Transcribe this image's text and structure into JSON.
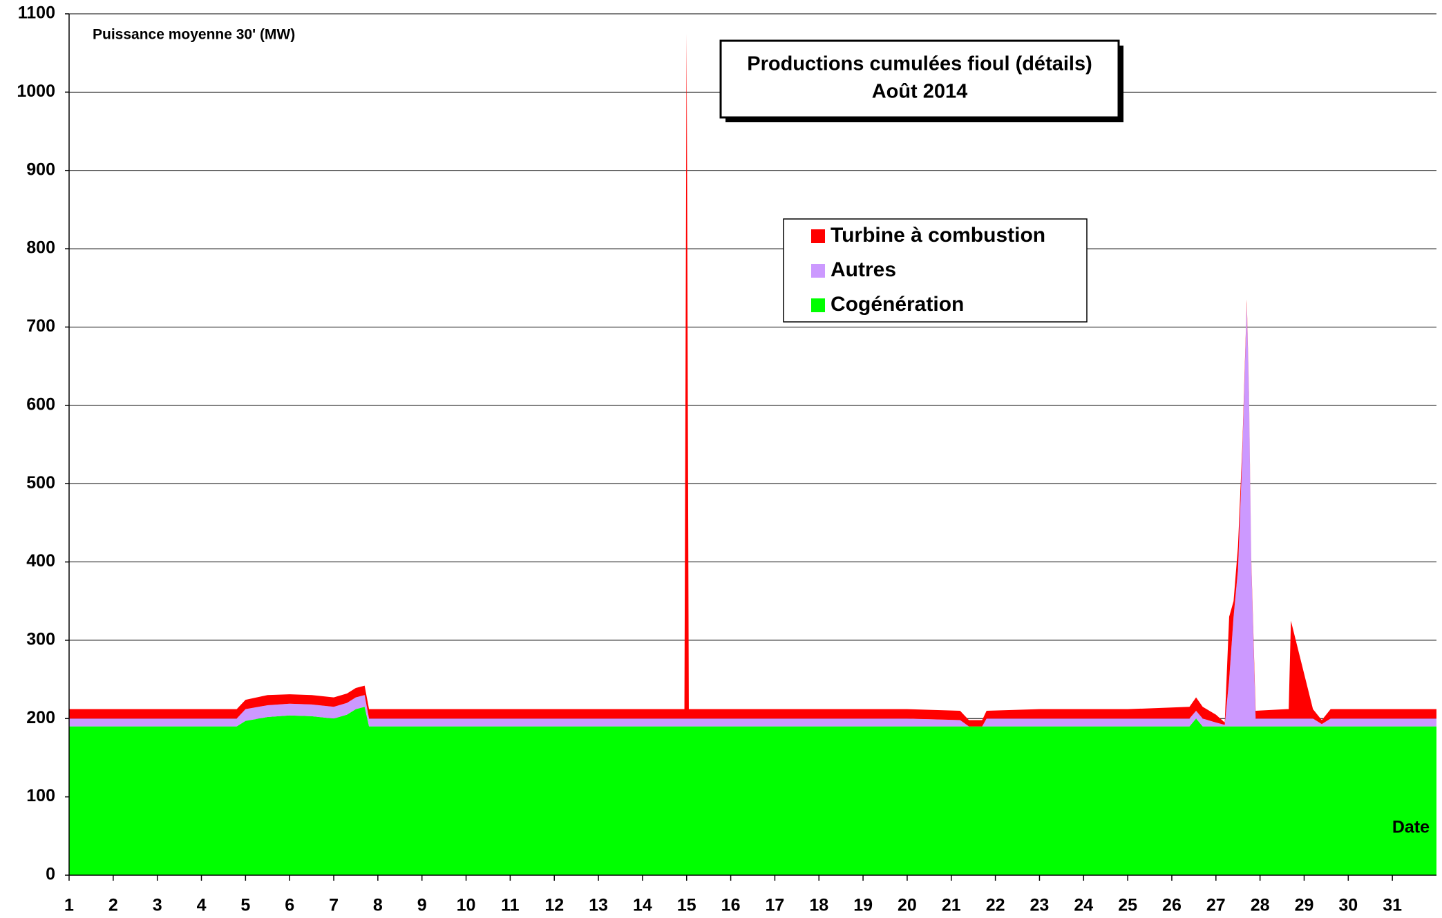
{
  "chart_data": {
    "type": "area",
    "stacked": true,
    "title": "Productions cumulées fioul (détails)",
    "subtitle": "Août 2014",
    "y_label": "Puissance moyenne 30' (MW)",
    "x_label": "Date",
    "x": [
      1,
      2,
      3,
      4,
      4.8,
      5.0,
      5.5,
      6,
      6.5,
      7,
      7.3,
      7.5,
      7.7,
      7.8,
      9,
      11,
      13,
      14.5,
      14.95,
      15.0,
      15.05,
      16,
      18,
      20,
      21.2,
      21.4,
      21.7,
      21.8,
      23,
      25,
      26.4,
      26.55,
      26.7,
      27.0,
      27.2,
      27.3,
      27.4,
      27.5,
      27.6,
      27.7,
      27.75,
      27.8,
      27.9,
      28.6,
      28.65,
      28.7,
      29.2,
      29.4,
      29.6,
      31,
      32
    ],
    "series": [
      {
        "name": "Cogénération",
        "color": "#00ff00",
        "values": [
          190,
          190,
          190,
          190,
          190,
          197,
          202,
          204,
          203,
          200,
          205,
          212,
          215,
          190,
          190,
          190,
          190,
          190,
          190,
          190,
          190,
          190,
          190,
          190,
          190,
          190,
          190,
          190,
          190,
          190,
          190,
          200,
          190,
          190,
          190,
          190,
          190,
          190,
          190,
          190,
          190,
          190,
          190,
          190,
          190,
          190,
          190,
          190,
          190,
          190,
          190
        ]
      },
      {
        "name": "Autres",
        "color": "#cc99ff",
        "values": [
          10,
          10,
          10,
          10,
          10,
          15,
          15,
          15,
          15,
          15,
          15,
          15,
          15,
          10,
          10,
          10,
          10,
          10,
          10,
          10,
          10,
          10,
          10,
          10,
          8,
          0,
          0,
          10,
          10,
          10,
          10,
          10,
          10,
          5,
          2,
          60,
          140,
          200,
          350,
          540,
          420,
          210,
          10,
          10,
          10,
          10,
          10,
          3,
          10,
          10,
          10
        ]
      },
      {
        "name": "Turbine à combustion",
        "color": "#ff0000",
        "values": [
          12,
          12,
          12,
          12,
          12,
          12,
          13,
          12,
          12,
          12,
          12,
          12,
          12,
          12,
          12,
          12,
          12,
          12,
          12,
          875,
          12,
          12,
          12,
          12,
          12,
          8,
          8,
          10,
          12,
          12,
          15,
          17,
          15,
          10,
          3,
          80,
          20,
          30,
          10,
          5,
          5,
          5,
          10,
          12,
          12,
          125,
          12,
          5,
          12,
          12,
          12
        ]
      }
    ],
    "xlim": [
      1,
      32
    ],
    "xticks": [
      1,
      2,
      3,
      4,
      5,
      6,
      7,
      8,
      9,
      10,
      11,
      12,
      13,
      14,
      15,
      16,
      17,
      18,
      19,
      20,
      21,
      22,
      23,
      24,
      25,
      26,
      27,
      28,
      29,
      30,
      31
    ],
    "ylim": [
      0,
      1100
    ],
    "yticks": [
      0,
      100,
      200,
      300,
      400,
      500,
      600,
      700,
      800,
      900,
      1000,
      1100
    ],
    "grid": true,
    "legend": "top-center"
  }
}
